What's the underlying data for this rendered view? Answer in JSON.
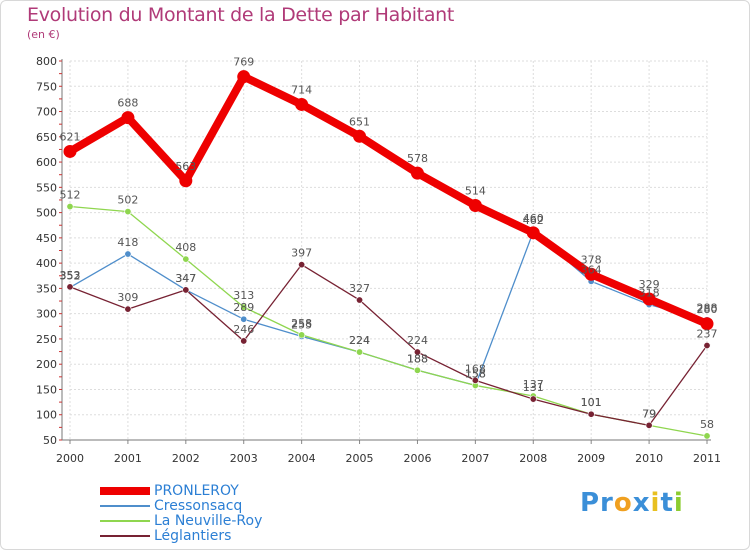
{
  "chart_data": {
    "type": "line",
    "title": "Evolution du Montant de la Dette par Habitant",
    "subtitle": "(en €)",
    "x": [
      "2000",
      "2001",
      "2002",
      "2003",
      "2004",
      "2005",
      "2006",
      "2007",
      "2008",
      "2009",
      "2010",
      "2011"
    ],
    "ylim": [
      50,
      800
    ],
    "yticks": [
      50,
      100,
      150,
      200,
      250,
      300,
      350,
      400,
      450,
      500,
      550,
      600,
      650,
      700,
      750,
      800
    ],
    "grid": true,
    "legend_position": "bottom-left",
    "series": [
      {
        "name": "PRONLEROY",
        "color": "#ee0000",
        "values": [
          621,
          688,
          563,
          769,
          714,
          651,
          578,
          514,
          460,
          378,
          329,
          280
        ]
      },
      {
        "name": "Cressonsacq",
        "color": "#4f8ecb",
        "values": [
          352,
          418,
          347,
          289,
          255,
          224,
          188,
          158,
          462,
          364,
          318,
          288
        ]
      },
      {
        "name": "La Neuville-Roy",
        "color": "#8fd64f",
        "values": [
          512,
          502,
          408,
          313,
          258,
          224,
          188,
          158,
          137,
          101,
          79,
          58
        ]
      },
      {
        "name": "Léglantiers",
        "color": "#772233",
        "values": [
          353,
          309,
          347,
          246,
          397,
          327,
          224,
          168,
          131,
          101,
          79,
          237
        ]
      }
    ]
  },
  "logo": {
    "parts": [
      "Pr",
      "o",
      "x",
      "i",
      "t",
      "i"
    ],
    "colors": [
      "#3b8fd8",
      "#f0a020",
      "#3b8fd8",
      "#e8c020",
      "#3b8fd8",
      "#8ccc30"
    ]
  }
}
